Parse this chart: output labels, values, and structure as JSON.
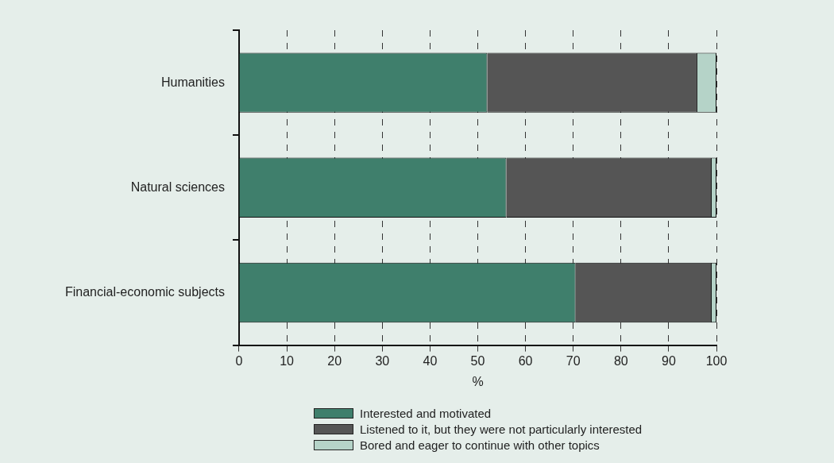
{
  "chart_data": {
    "type": "bar",
    "orientation": "horizontal",
    "stacked": true,
    "categories": [
      "Humanities",
      "Natural sciences",
      "Financial-economic subjects"
    ],
    "series": [
      {
        "name": "Interested and motivated",
        "color": "#3f7f6c",
        "values": [
          52,
          56,
          70.5
        ]
      },
      {
        "name": "Listened to it, but they were not particularly interested",
        "color": "#555555",
        "values": [
          44,
          43,
          28.5
        ]
      },
      {
        "name": "Bored and eager to continue with other topics",
        "color": "#b5d3c8",
        "values": [
          4,
          1,
          1
        ]
      }
    ],
    "xlabel": "%",
    "xlim": [
      0,
      100
    ],
    "xticks": [
      0,
      10,
      20,
      30,
      40,
      50,
      60,
      70,
      80,
      90,
      100
    ],
    "grid": "x",
    "legend": "bottom"
  }
}
